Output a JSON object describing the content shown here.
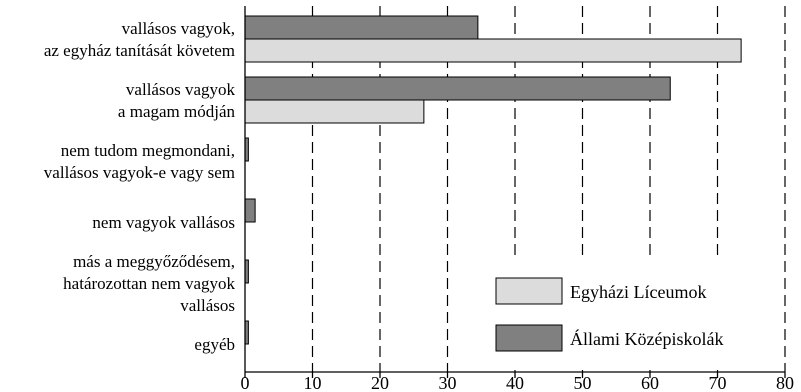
{
  "chart_data": {
    "type": "bar",
    "orientation": "horizontal",
    "categories": [
      [
        "vallásos vagyok,",
        "az egyház tanítását követem"
      ],
      [
        "vallásos vagyok",
        "a magam módján"
      ],
      [
        "nem tudom megmondani,",
        "vallásos vagyok-e vagy sem"
      ],
      [
        "nem vagyok vallásos"
      ],
      [
        "más a meggyőződésem,",
        "határozottan nem vagyok",
        "vallásos"
      ],
      [
        "egyéb"
      ]
    ],
    "series": [
      {
        "name": "Állami Középiskolák",
        "color": "#808080",
        "values": [
          34.5,
          63,
          0.5,
          1.5,
          0.5,
          0.5
        ]
      },
      {
        "name": "Egyházi Líceumok",
        "color": "#dcdcdc",
        "values": [
          73.5,
          26.5,
          0,
          0,
          0,
          0
        ]
      }
    ],
    "xlim": [
      0,
      80
    ],
    "x_ticks": [
      0,
      10,
      20,
      30,
      40,
      50,
      60,
      70,
      80
    ],
    "grid": "vertical dashed",
    "legend": {
      "placement": "bottom-right",
      "order": [
        "Egyházi Líceumok",
        "Állami Középiskolák"
      ]
    },
    "title": "",
    "xlabel": "",
    "ylabel": ""
  }
}
